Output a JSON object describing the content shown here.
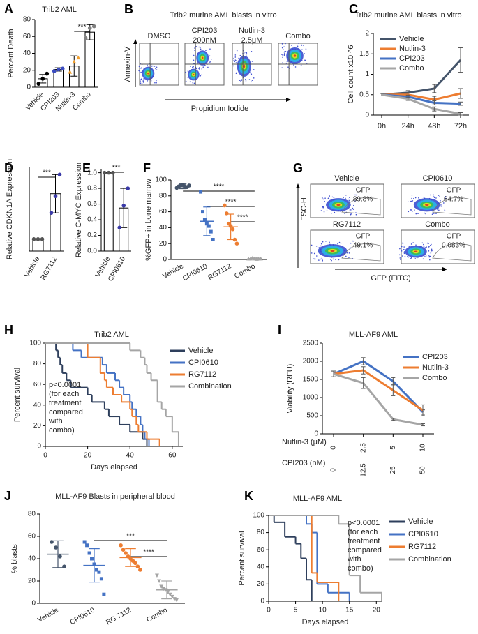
{
  "chart_data": [
    {
      "panel": "A",
      "type": "bar",
      "title": "Trib2 AML",
      "y_label": "Percent Death",
      "categories": [
        "Vehicle",
        "CPI203",
        "Nutlin-3",
        "Combo"
      ],
      "values": [
        10,
        21,
        25,
        65
      ],
      "errors": [
        5,
        2,
        12,
        9
      ],
      "points": [
        [
          4,
          10,
          16
        ],
        [
          19,
          21,
          22
        ],
        [
          18,
          30,
          35
        ],
        [
          58,
          70,
          72
        ]
      ],
      "colors": [
        "#000000",
        "#3b4cc0",
        "#f0a030",
        "#808080"
      ],
      "bar_color": "#ffffff",
      "edge_color": "#000000",
      "ylim": [
        0,
        80
      ],
      "yticks": [
        0,
        20,
        40,
        60,
        80
      ],
      "significance": [
        "***"
      ]
    },
    {
      "panel": "C",
      "type": "line",
      "title": "Trib2 murine AML blasts in vitro",
      "y_label": "Cell count x10 ^6",
      "categories": [
        "0h",
        "24h",
        "48h",
        "72h"
      ],
      "series": [
        {
          "name": "Vehicle",
          "color": "#44546a",
          "values": [
            0.5,
            0.55,
            0.65,
            1.35
          ],
          "errors": [
            0.03,
            0.05,
            0.1,
            0.3
          ]
        },
        {
          "name": "Nutlin-3",
          "color": "#ed7d31",
          "values": [
            0.5,
            0.5,
            0.38,
            0.53
          ],
          "errors": [
            0.03,
            0.05,
            0.08,
            0.12
          ]
        },
        {
          "name": "CPI203",
          "color": "#4472c4",
          "values": [
            0.5,
            0.45,
            0.3,
            0.28
          ],
          "errors": [
            0.03,
            0.04,
            0.05,
            0.04
          ]
        },
        {
          "name": "Combo",
          "color": "#a5a5a5",
          "values": [
            0.5,
            0.4,
            0.15,
            0.03
          ],
          "errors": [
            0.03,
            0.04,
            0.05,
            0.03
          ]
        }
      ],
      "ylim": [
        0,
        2
      ],
      "yticks": [
        0,
        0.5,
        1,
        1.5,
        2
      ]
    },
    {
      "panel": "D",
      "type": "bar",
      "y_label": "Relative CDKN1A Expression",
      "categories": [
        "Vehicle",
        "RG7112"
      ],
      "values": [
        1,
        4.8
      ],
      "errors": [
        0.05,
        1.6
      ],
      "points": [
        [
          1,
          1,
          1
        ],
        [
          3.2,
          4.6,
          6.4
        ]
      ],
      "colors": [
        "#555555",
        "#3a3aa8"
      ],
      "bar_color": "#ffffff",
      "edge_color": "#000000",
      "ylim": [
        0,
        7
      ],
      "significance": [
        "***"
      ]
    },
    {
      "panel": "E",
      "type": "bar",
      "y_label": "Relative C-MYC Expression",
      "categories": [
        "Vehicle",
        "CPI0610"
      ],
      "values": [
        1,
        0.55
      ],
      "errors": [
        0.005,
        0.25
      ],
      "points": [
        [
          1,
          1,
          1
        ],
        [
          0.3,
          0.58,
          0.8
        ]
      ],
      "colors": [
        "#555555",
        "#3a3aa8"
      ],
      "bar_color": "#ffffff",
      "edge_color": "#000000",
      "ylim": [
        0,
        1.05
      ],
      "yticks": [
        {
          "value": 0,
          "label": "0.0"
        },
        {
          "value": 0.2,
          "label": "0.2"
        },
        {
          "value": 0.4,
          "label": "0.4"
        },
        {
          "value": 0.6,
          "label": "0.6"
        },
        {
          "value": 0.8,
          "label": "0.8"
        },
        {
          "value": 1,
          "label": "1.0"
        }
      ],
      "significance": [
        "***"
      ]
    },
    {
      "panel": "F",
      "type": "dot",
      "y_label": "%GFP+ in bone marrow",
      "categories": [
        "Vehicle",
        "CPI0610",
        "RG7112",
        "Combo"
      ],
      "points": [
        [
          90,
          92,
          93,
          94,
          92,
          91,
          93
        ],
        [
          85,
          60,
          50,
          45,
          42,
          35,
          25
        ],
        [
          68,
          58,
          45,
          42,
          38,
          25,
          20
        ],
        [
          1,
          1,
          2,
          1,
          0.5,
          1,
          1
        ]
      ],
      "means": [
        92,
        48,
        41,
        1
      ],
      "sds": [
        3,
        18,
        16,
        1
      ],
      "colors": [
        "#44546a",
        "#4472c4",
        "#ed7d31",
        "#a5a5a5"
      ],
      "markers": [
        "circle",
        "square",
        "circle",
        "triangle"
      ],
      "ylim": [
        0,
        100
      ],
      "yticks": [
        0,
        20,
        40,
        60,
        80,
        100
      ],
      "significance": [
        "****",
        "****",
        "****"
      ]
    },
    {
      "panel": "H",
      "type": "step",
      "title": "Trib2 AML",
      "y_label": "Percent survival",
      "x_label": "Days elapsed",
      "annotation": [
        "p<0.0001",
        "(for each",
        "treatment",
        "compared",
        "with",
        "combo)"
      ],
      "series": [
        {
          "name": "Vehicle",
          "color": "#2e3f5c",
          "x": [
            0,
            5,
            6,
            7,
            8,
            10,
            12,
            20,
            22,
            28,
            30,
            35,
            40,
            46,
            48
          ],
          "values": [
            100,
            93,
            86,
            79,
            71,
            64,
            57,
            50,
            43,
            36,
            29,
            21,
            14,
            7,
            0
          ]
        },
        {
          "name": "CPI0610",
          "color": "#4472c4",
          "x": [
            0,
            13,
            17,
            27,
            29,
            33,
            35,
            37,
            40,
            41,
            43,
            45,
            46,
            47,
            49
          ],
          "values": [
            100,
            93,
            86,
            79,
            71,
            64,
            57,
            50,
            43,
            36,
            29,
            21,
            14,
            7,
            0
          ]
        },
        {
          "name": "RG7112",
          "color": "#ed7d31",
          "x": [
            0,
            20,
            26,
            28,
            29,
            32,
            36,
            40,
            41,
            43,
            44,
            48,
            54
          ],
          "values": [
            100,
            86,
            71,
            64,
            57,
            50,
            43,
            36,
            29,
            21,
            14,
            7,
            0
          ]
        },
        {
          "name": "Combination",
          "color": "#a5a5a5",
          "x": [
            0,
            40,
            45,
            47,
            48,
            50,
            53,
            55,
            57,
            60,
            63
          ],
          "values": [
            100,
            93,
            86,
            79,
            71,
            64,
            43,
            36,
            29,
            14,
            0
          ]
        }
      ],
      "xlim": [
        0,
        65
      ],
      "xticks": [
        0,
        20,
        40,
        60
      ],
      "ylim": [
        0,
        100
      ],
      "yticks": [
        0,
        20,
        40,
        60,
        80,
        100
      ]
    },
    {
      "panel": "I",
      "type": "line",
      "title": "MLL-AF9 AML",
      "y_label": "Viability (RFU)",
      "x_row_labels": [
        "Nutlin-3 (μM)",
        "CPI203 (nM)"
      ],
      "categories": [
        "0",
        "2.5",
        "5",
        "10"
      ],
      "categories2": [
        "0",
        "12.5",
        "25",
        "50"
      ],
      "series": [
        {
          "name": "CPI203",
          "color": "#4472c4",
          "values": [
            1650,
            2000,
            1450,
            600
          ],
          "errors": [
            80,
            100,
            100,
            60
          ]
        },
        {
          "name": "Nutlin-3",
          "color": "#ed7d31",
          "values": [
            1650,
            1750,
            1200,
            650
          ],
          "errors": [
            80,
            100,
            150,
            150
          ]
        },
        {
          "name": "Combo",
          "color": "#a5a5a5",
          "values": [
            1650,
            1400,
            400,
            250
          ],
          "errors": [
            80,
            150,
            30,
            30
          ]
        }
      ],
      "ylim": [
        0,
        2500
      ],
      "yticks": [
        0,
        500,
        1000,
        1500,
        2000,
        2500
      ]
    },
    {
      "panel": "J",
      "type": "dot",
      "title": "MLL-AF9 Blasts in peripheral blood",
      "y_label": "% blasts",
      "categories": [
        "Vehicle",
        "CPI0610",
        "RG 7112",
        "Combo"
      ],
      "points": [
        [
          55,
          50,
          42,
          33
        ],
        [
          55,
          52,
          45,
          40,
          35,
          30,
          28,
          22,
          8
        ],
        [
          52,
          48,
          45,
          42,
          40,
          38,
          36,
          33,
          30
        ],
        [
          25,
          20,
          15,
          13,
          12,
          10,
          8,
          6,
          4,
          3
        ]
      ],
      "means": [
        44,
        34,
        41,
        12
      ],
      "sds": [
        12,
        15,
        8,
        8
      ],
      "colors": [
        "#44546a",
        "#4472c4",
        "#ed7d31",
        "#a5a5a5"
      ],
      "markers": [
        "circle",
        "square",
        "circle",
        "triangle-down"
      ],
      "ylim": [
        0,
        80
      ],
      "yticks": [
        0,
        20,
        40,
        60,
        80
      ],
      "significance": [
        "***",
        "****"
      ]
    },
    {
      "panel": "K",
      "type": "step",
      "title": "MLL-AF9 AML",
      "y_label": "Percent survival",
      "x_label": "Days elapsed",
      "annotation": [
        "p<0.0001",
        "(for each",
        "treatment",
        "compared",
        "with",
        "combo)"
      ],
      "series": [
        {
          "name": "Vehicle",
          "color": "#2e3f5c",
          "x": [
            0,
            1,
            3,
            5,
            6,
            7,
            8
          ],
          "values": [
            100,
            92,
            75,
            67,
            50,
            25,
            0
          ]
        },
        {
          "name": "CPI0610",
          "color": "#4472c4",
          "x": [
            0,
            7,
            8,
            9,
            11,
            15
          ],
          "values": [
            100,
            90,
            80,
            20,
            10,
            0
          ]
        },
        {
          "name": "RG7112",
          "color": "#ed7d31",
          "x": [
            0,
            8,
            9,
            13
          ],
          "values": [
            100,
            33,
            22,
            0
          ]
        },
        {
          "name": "Combination",
          "color": "#a5a5a5",
          "x": [
            0,
            13,
            15,
            17,
            21
          ],
          "values": [
            100,
            90,
            30,
            10,
            0
          ]
        }
      ],
      "xlim": [
        0,
        21
      ],
      "xticks": [
        0,
        5,
        10,
        15,
        20
      ],
      "ylim": [
        0,
        100
      ],
      "yticks": [
        0,
        20,
        40,
        60,
        80,
        100
      ]
    }
  ],
  "flow_b": {
    "panel": "B",
    "title": "Trib2 murine AML blasts in vitro",
    "conditions": [
      [
        "DMSO"
      ],
      [
        "CPI203",
        "200nM"
      ],
      [
        "Nutlin-3",
        "2.5μM"
      ],
      [
        "Combo"
      ]
    ],
    "y_label": "Annexin-V",
    "x_label": "Propidium Iodide"
  },
  "flow_g": {
    "panel": "G",
    "conditions": [
      {
        "name": "Vehicle",
        "gate": "GFP",
        "percent": "89.8%"
      },
      {
        "name": "CPI0610",
        "gate": "GFP",
        "percent": "64.7%"
      },
      {
        "name": "RG7112",
        "gate": "GFP",
        "percent": "49.1%"
      },
      {
        "name": "Combo",
        "gate": "GFP",
        "percent": "0.083%"
      }
    ],
    "y_label": "FSC-H",
    "x_label": "GFP (FITC)"
  }
}
